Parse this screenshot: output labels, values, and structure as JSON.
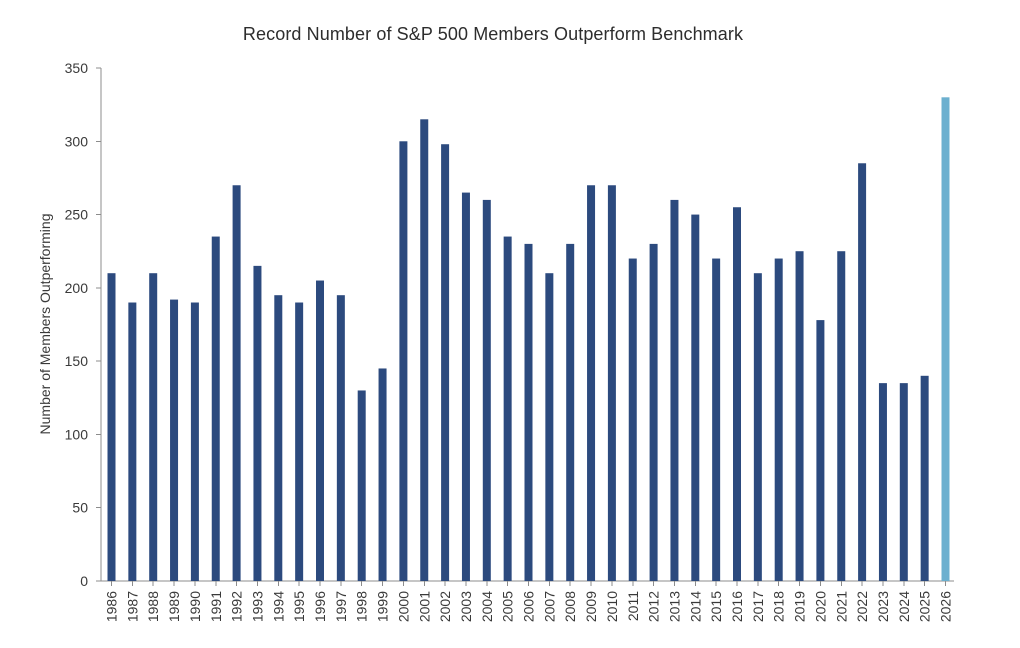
{
  "chart_data": {
    "type": "bar",
    "title": "Record Number of S&P 500 Members Outperform Benchmark",
    "xlabel": "",
    "ylabel": "Number of Members Outperforming",
    "ylim": [
      0,
      350
    ],
    "yticks": [
      0,
      50,
      100,
      150,
      200,
      250,
      300,
      350
    ],
    "grid": false,
    "legend": "none",
    "categories": [
      "1986",
      "1987",
      "1988",
      "1989",
      "1990",
      "1991",
      "1992",
      "1993",
      "1994",
      "1995",
      "1996",
      "1997",
      "1998",
      "1999",
      "2000",
      "2001",
      "2002",
      "2003",
      "2004",
      "2005",
      "2006",
      "2007",
      "2008",
      "2009",
      "2010",
      "2011",
      "2012",
      "2013",
      "2014",
      "2015",
      "2016",
      "2017",
      "2018",
      "2019",
      "2020",
      "2021",
      "2022",
      "2023",
      "2024",
      "2025",
      "2026"
    ],
    "values": [
      210,
      190,
      210,
      192,
      190,
      235,
      270,
      215,
      195,
      190,
      205,
      195,
      130,
      145,
      300,
      315,
      298,
      265,
      260,
      235,
      230,
      210,
      230,
      270,
      270,
      220,
      230,
      260,
      250,
      220,
      255,
      210,
      220,
      225,
      178,
      225,
      285,
      135,
      135,
      140,
      330
    ],
    "colors": {
      "bar": "#2c4a7e",
      "highlight": "#6cb0cf"
    },
    "highlight_index": 40
  }
}
